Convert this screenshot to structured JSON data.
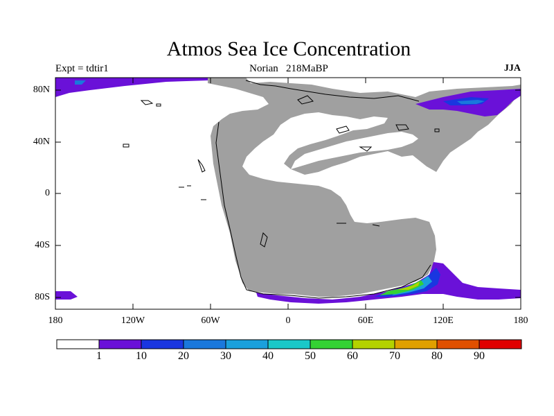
{
  "title": "Atmos Sea Ice Concentration",
  "experiment": "Expt = tdtir1",
  "subtitle": "Norian   218MaBP",
  "season": "JJA",
  "axes": {
    "lat_labels": [
      "80N",
      "40N",
      "0",
      "40S",
      "80S"
    ],
    "lon_labels": [
      "180",
      "120W",
      "60W",
      "0",
      "60E",
      "120E",
      "180"
    ]
  },
  "colorbar": {
    "labels": [
      "1",
      "10",
      "20",
      "30",
      "40",
      "50",
      "60",
      "70",
      "80",
      "90"
    ],
    "colors": [
      "#ffffff",
      "#6a11d8",
      "#1a36e0",
      "#1a78dc",
      "#1aa0dc",
      "#1ac8c8",
      "#34d234",
      "#b4d200",
      "#e0a000",
      "#e05000",
      "#e00000"
    ]
  },
  "map_colors": {
    "land": "#a0a0a0",
    "ocean": "#ffffff",
    "coastline": "#000000"
  }
}
